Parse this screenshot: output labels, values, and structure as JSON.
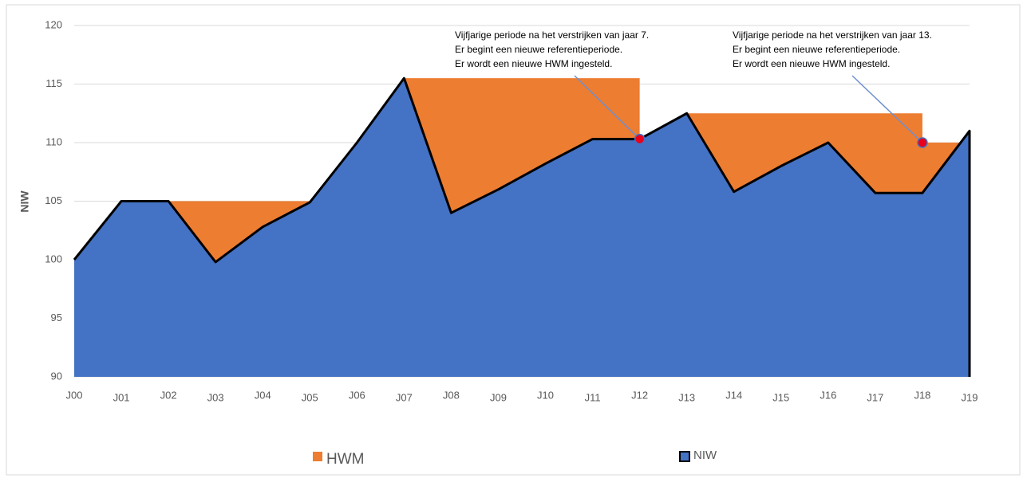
{
  "chart_data": {
    "type": "area",
    "y_label": "NIW",
    "categories": [
      "J00",
      "J01",
      "J02",
      "J03",
      "J04",
      "J05",
      "J06",
      "J07",
      "J08",
      "J09",
      "J10",
      "J11",
      "J12",
      "J13",
      "J14",
      "J15",
      "J16",
      "J17",
      "J18",
      "J19"
    ],
    "series": [
      {
        "name": "HWM",
        "color": "#ed7d31",
        "values": [
          100,
          105,
          105,
          105,
          105,
          105,
          110,
          115.5,
          115.5,
          115.5,
          115.5,
          115.5,
          110.3,
          112.5,
          112.5,
          112.5,
          112.5,
          112.5,
          110,
          110
        ]
      },
      {
        "name": "NIW",
        "color": "#4472c4",
        "values": [
          100,
          105,
          105,
          99.8,
          102.8,
          104.9,
          110,
          115.5,
          104,
          106,
          108.2,
          110.3,
          110.3,
          112.5,
          105.8,
          108,
          110,
          105.7,
          105.7,
          111
        ]
      }
    ],
    "ylim": [
      90,
      120
    ],
    "yticks": [
      90,
      95,
      100,
      105,
      110,
      115,
      120
    ],
    "grid": true,
    "annotations": [
      {
        "lines": [
          "Vijfjarige periode na het verstrijken van jaar 7.",
          "Er begint een nieuwe referentieperiode.",
          "Er wordt een nieuwe HWM ingesteld."
        ]
      },
      {
        "lines": [
          "Vijfjarige periode na het verstrijken van jaar 13.",
          "Er begint een nieuwe referentieperiode.",
          "Er wordt een nieuwe HWM ingesteld."
        ]
      }
    ]
  }
}
